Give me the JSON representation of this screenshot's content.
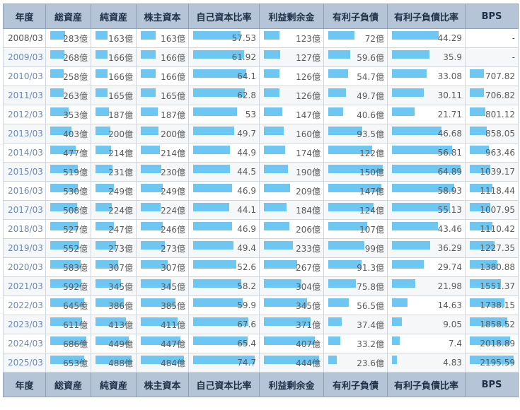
{
  "headers": [
    "年度",
    "総資産",
    "純資産",
    "株主資本",
    "自己資本比率",
    "利益剰余金",
    "有利子負債",
    "有利子負債比率",
    "BPS"
  ],
  "bar_color": "#6ec6f2",
  "header_bg": "#b5c4d6",
  "rows": [
    {
      "year": "2008/03",
      "total_assets": "283億",
      "net_assets": "163億",
      "equity": "163億",
      "equity_ratio": "57.53",
      "retained": "123億",
      "debt": "72億",
      "debt_ratio": "44.29",
      "bps": "-",
      "bars": {
        "total_assets": 0.41,
        "net_assets": 0.33,
        "equity": 0.34,
        "equity_ratio": 0.77,
        "retained": 0.28,
        "debt": 0.48,
        "debt_ratio": 0.68,
        "bps": 0
      }
    },
    {
      "year": "2009/03",
      "total_assets": "268億",
      "net_assets": "166億",
      "equity": "166億",
      "equity_ratio": "61.92",
      "retained": "127億",
      "debt": "59.6億",
      "debt_ratio": "35.9",
      "bps": "-",
      "bars": {
        "total_assets": 0.39,
        "net_assets": 0.34,
        "equity": 0.34,
        "equity_ratio": 0.83,
        "retained": 0.29,
        "debt": 0.4,
        "debt_ratio": 0.55,
        "bps": 0
      }
    },
    {
      "year": "2010/03",
      "total_assets": "258億",
      "net_assets": "166億",
      "equity": "166億",
      "equity_ratio": "64.1",
      "retained": "126億",
      "debt": "54.7億",
      "debt_ratio": "33.08",
      "bps": "707.82",
      "bars": {
        "total_assets": 0.38,
        "net_assets": 0.34,
        "equity": 0.34,
        "equity_ratio": 0.86,
        "retained": 0.28,
        "debt": 0.36,
        "debt_ratio": 0.51,
        "bps": 0.32
      }
    },
    {
      "year": "2011/03",
      "total_assets": "263億",
      "net_assets": "165億",
      "equity": "165億",
      "equity_ratio": "62.8",
      "retained": "126億",
      "debt": "49.7億",
      "debt_ratio": "30.11",
      "bps": "706.82",
      "bars": {
        "total_assets": 0.38,
        "net_assets": 0.34,
        "equity": 0.34,
        "equity_ratio": 0.84,
        "retained": 0.28,
        "debt": 0.33,
        "debt_ratio": 0.46,
        "bps": 0.32
      }
    },
    {
      "year": "2012/03",
      "total_assets": "353億",
      "net_assets": "187億",
      "equity": "187億",
      "equity_ratio": "53",
      "retained": "147億",
      "debt": "40.6億",
      "debt_ratio": "21.71",
      "bps": "801.12",
      "bars": {
        "total_assets": 0.51,
        "net_assets": 0.38,
        "equity": 0.39,
        "equity_ratio": 0.71,
        "retained": 0.33,
        "debt": 0.27,
        "debt_ratio": 0.33,
        "bps": 0.36
      }
    },
    {
      "year": "2013/03",
      "total_assets": "403億",
      "net_assets": "200億",
      "equity": "200億",
      "equity_ratio": "49.7",
      "retained": "160億",
      "debt": "93.5億",
      "debt_ratio": "46.68",
      "bps": "858.05",
      "bars": {
        "total_assets": 0.59,
        "net_assets": 0.41,
        "equity": 0.41,
        "equity_ratio": 0.67,
        "retained": 0.36,
        "debt": 0.62,
        "debt_ratio": 0.72,
        "bps": 0.39
      }
    },
    {
      "year": "2014/03",
      "total_assets": "477億",
      "net_assets": "214億",
      "equity": "214億",
      "equity_ratio": "44.9",
      "retained": "174億",
      "debt": "122億",
      "debt_ratio": "56.81",
      "bps": "963.46",
      "bars": {
        "total_assets": 0.7,
        "net_assets": 0.44,
        "equity": 0.44,
        "equity_ratio": 0.6,
        "retained": 0.39,
        "debt": 0.81,
        "debt_ratio": 0.88,
        "bps": 0.44
      }
    },
    {
      "year": "2015/03",
      "total_assets": "519億",
      "net_assets": "231億",
      "equity": "230億",
      "equity_ratio": "44.5",
      "retained": "190億",
      "debt": "150億",
      "debt_ratio": "64.89",
      "bps": "1039.17",
      "bars": {
        "total_assets": 0.76,
        "net_assets": 0.47,
        "equity": 0.48,
        "equity_ratio": 0.6,
        "retained": 0.43,
        "debt": 1.0,
        "debt_ratio": 1.0,
        "bps": 0.47
      }
    },
    {
      "year": "2016/03",
      "total_assets": "530億",
      "net_assets": "249億",
      "equity": "249億",
      "equity_ratio": "46.9",
      "retained": "209億",
      "debt": "147億",
      "debt_ratio": "58.93",
      "bps": "1118.44",
      "bars": {
        "total_assets": 0.77,
        "net_assets": 0.51,
        "equity": 0.51,
        "equity_ratio": 0.63,
        "retained": 0.47,
        "debt": 0.98,
        "debt_ratio": 0.91,
        "bps": 0.51
      }
    },
    {
      "year": "2017/03",
      "total_assets": "508億",
      "net_assets": "224億",
      "equity": "224億",
      "equity_ratio": "44.1",
      "retained": "184億",
      "debt": "124億",
      "debt_ratio": "55.13",
      "bps": "1007.95",
      "bars": {
        "total_assets": 0.74,
        "net_assets": 0.46,
        "equity": 0.46,
        "equity_ratio": 0.59,
        "retained": 0.41,
        "debt": 0.83,
        "debt_ratio": 0.85,
        "bps": 0.46
      }
    },
    {
      "year": "2018/03",
      "total_assets": "527億",
      "net_assets": "247億",
      "equity": "246億",
      "equity_ratio": "46.9",
      "retained": "206億",
      "debt": "107億",
      "debt_ratio": "43.46",
      "bps": "1110.42",
      "bars": {
        "total_assets": 0.77,
        "net_assets": 0.51,
        "equity": 0.51,
        "equity_ratio": 0.63,
        "retained": 0.46,
        "debt": 0.71,
        "debt_ratio": 0.67,
        "bps": 0.51
      }
    },
    {
      "year": "2019/03",
      "total_assets": "552億",
      "net_assets": "273億",
      "equity": "273億",
      "equity_ratio": "49.4",
      "retained": "233億",
      "debt": "99億",
      "debt_ratio": "36.29",
      "bps": "1227.35",
      "bars": {
        "total_assets": 0.8,
        "net_assets": 0.56,
        "equity": 0.56,
        "equity_ratio": 0.66,
        "retained": 0.52,
        "debt": 0.66,
        "debt_ratio": 0.56,
        "bps": 0.56
      }
    },
    {
      "year": "2020/03",
      "total_assets": "583億",
      "net_assets": "307億",
      "equity": "307億",
      "equity_ratio": "52.6",
      "retained": "267億",
      "debt": "91.3億",
      "debt_ratio": "29.74",
      "bps": "1380.88",
      "bars": {
        "total_assets": 0.85,
        "net_assets": 0.63,
        "equity": 0.63,
        "equity_ratio": 0.7,
        "retained": 0.6,
        "debt": 0.61,
        "debt_ratio": 0.46,
        "bps": 0.63
      }
    },
    {
      "year": "2021/03",
      "total_assets": "592億",
      "net_assets": "345億",
      "equity": "345億",
      "equity_ratio": "58.2",
      "retained": "304億",
      "debt": "75.8億",
      "debt_ratio": "21.98",
      "bps": "1551.37",
      "bars": {
        "total_assets": 0.86,
        "net_assets": 0.71,
        "equity": 0.71,
        "equity_ratio": 0.78,
        "retained": 0.68,
        "debt": 0.51,
        "debt_ratio": 0.34,
        "bps": 0.71
      }
    },
    {
      "year": "2022/03",
      "total_assets": "645億",
      "net_assets": "386億",
      "equity": "385億",
      "equity_ratio": "59.9",
      "retained": "345億",
      "debt": "56.5億",
      "debt_ratio": "14.63",
      "bps": "1738.15",
      "bars": {
        "total_assets": 0.94,
        "net_assets": 0.79,
        "equity": 0.8,
        "equity_ratio": 0.8,
        "retained": 0.78,
        "debt": 0.38,
        "debt_ratio": 0.23,
        "bps": 0.79
      }
    },
    {
      "year": "2023/03",
      "total_assets": "611億",
      "net_assets": "413億",
      "equity": "411億",
      "equity_ratio": "67.6",
      "retained": "371億",
      "debt": "37.4億",
      "debt_ratio": "9.05",
      "bps": "1858.52",
      "bars": {
        "total_assets": 0.89,
        "net_assets": 0.85,
        "equity": 0.85,
        "equity_ratio": 0.9,
        "retained": 0.84,
        "debt": 0.25,
        "debt_ratio": 0.14,
        "bps": 0.85
      }
    },
    {
      "year": "2024/03",
      "total_assets": "686億",
      "net_assets": "449億",
      "equity": "447億",
      "equity_ratio": "65.4",
      "retained": "407億",
      "debt": "33.2億",
      "debt_ratio": "7.4",
      "bps": "2018.89",
      "bars": {
        "total_assets": 1.0,
        "net_assets": 0.92,
        "equity": 0.92,
        "equity_ratio": 0.88,
        "retained": 0.92,
        "debt": 0.22,
        "debt_ratio": 0.11,
        "bps": 0.92
      }
    },
    {
      "year": "2025/03",
      "total_assets": "653億",
      "net_assets": "488億",
      "equity": "484億",
      "equity_ratio": "74.7",
      "retained": "444億",
      "debt": "23.6億",
      "debt_ratio": "4.83",
      "bps": "2195.59",
      "bars": {
        "total_assets": 0.95,
        "net_assets": 1.0,
        "equity": 1.0,
        "equity_ratio": 1.0,
        "retained": 1.0,
        "debt": 0.16,
        "debt_ratio": 0.07,
        "bps": 1.0
      }
    }
  ]
}
